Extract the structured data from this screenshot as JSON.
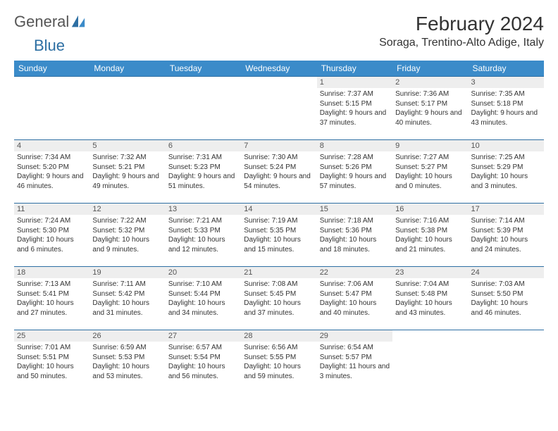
{
  "logo": {
    "line1": "General",
    "line2": "Blue",
    "brand_color": "#2d6fa3"
  },
  "title": "February 2024",
  "location": "Soraga, Trentino-Alto Adige, Italy",
  "colors": {
    "header_bg": "#3b8bc9",
    "header_text": "#ffffff",
    "rule": "#2d6fa3",
    "daynum_bg": "#eeeeee",
    "body_text": "#333333"
  },
  "day_headers": [
    "Sunday",
    "Monday",
    "Tuesday",
    "Wednesday",
    "Thursday",
    "Friday",
    "Saturday"
  ],
  "weeks": [
    [
      {
        "empty": true
      },
      {
        "empty": true
      },
      {
        "empty": true
      },
      {
        "empty": true
      },
      {
        "num": "1",
        "sunrise": "7:37 AM",
        "sunset": "5:15 PM",
        "daylight": "9 hours and 37 minutes."
      },
      {
        "num": "2",
        "sunrise": "7:36 AM",
        "sunset": "5:17 PM",
        "daylight": "9 hours and 40 minutes."
      },
      {
        "num": "3",
        "sunrise": "7:35 AM",
        "sunset": "5:18 PM",
        "daylight": "9 hours and 43 minutes."
      }
    ],
    [
      {
        "num": "4",
        "sunrise": "7:34 AM",
        "sunset": "5:20 PM",
        "daylight": "9 hours and 46 minutes."
      },
      {
        "num": "5",
        "sunrise": "7:32 AM",
        "sunset": "5:21 PM",
        "daylight": "9 hours and 49 minutes."
      },
      {
        "num": "6",
        "sunrise": "7:31 AM",
        "sunset": "5:23 PM",
        "daylight": "9 hours and 51 minutes."
      },
      {
        "num": "7",
        "sunrise": "7:30 AM",
        "sunset": "5:24 PM",
        "daylight": "9 hours and 54 minutes."
      },
      {
        "num": "8",
        "sunrise": "7:28 AM",
        "sunset": "5:26 PM",
        "daylight": "9 hours and 57 minutes."
      },
      {
        "num": "9",
        "sunrise": "7:27 AM",
        "sunset": "5:27 PM",
        "daylight": "10 hours and 0 minutes."
      },
      {
        "num": "10",
        "sunrise": "7:25 AM",
        "sunset": "5:29 PM",
        "daylight": "10 hours and 3 minutes."
      }
    ],
    [
      {
        "num": "11",
        "sunrise": "7:24 AM",
        "sunset": "5:30 PM",
        "daylight": "10 hours and 6 minutes."
      },
      {
        "num": "12",
        "sunrise": "7:22 AM",
        "sunset": "5:32 PM",
        "daylight": "10 hours and 9 minutes."
      },
      {
        "num": "13",
        "sunrise": "7:21 AM",
        "sunset": "5:33 PM",
        "daylight": "10 hours and 12 minutes."
      },
      {
        "num": "14",
        "sunrise": "7:19 AM",
        "sunset": "5:35 PM",
        "daylight": "10 hours and 15 minutes."
      },
      {
        "num": "15",
        "sunrise": "7:18 AM",
        "sunset": "5:36 PM",
        "daylight": "10 hours and 18 minutes."
      },
      {
        "num": "16",
        "sunrise": "7:16 AM",
        "sunset": "5:38 PM",
        "daylight": "10 hours and 21 minutes."
      },
      {
        "num": "17",
        "sunrise": "7:14 AM",
        "sunset": "5:39 PM",
        "daylight": "10 hours and 24 minutes."
      }
    ],
    [
      {
        "num": "18",
        "sunrise": "7:13 AM",
        "sunset": "5:41 PM",
        "daylight": "10 hours and 27 minutes."
      },
      {
        "num": "19",
        "sunrise": "7:11 AM",
        "sunset": "5:42 PM",
        "daylight": "10 hours and 31 minutes."
      },
      {
        "num": "20",
        "sunrise": "7:10 AM",
        "sunset": "5:44 PM",
        "daylight": "10 hours and 34 minutes."
      },
      {
        "num": "21",
        "sunrise": "7:08 AM",
        "sunset": "5:45 PM",
        "daylight": "10 hours and 37 minutes."
      },
      {
        "num": "22",
        "sunrise": "7:06 AM",
        "sunset": "5:47 PM",
        "daylight": "10 hours and 40 minutes."
      },
      {
        "num": "23",
        "sunrise": "7:04 AM",
        "sunset": "5:48 PM",
        "daylight": "10 hours and 43 minutes."
      },
      {
        "num": "24",
        "sunrise": "7:03 AM",
        "sunset": "5:50 PM",
        "daylight": "10 hours and 46 minutes."
      }
    ],
    [
      {
        "num": "25",
        "sunrise": "7:01 AM",
        "sunset": "5:51 PM",
        "daylight": "10 hours and 50 minutes."
      },
      {
        "num": "26",
        "sunrise": "6:59 AM",
        "sunset": "5:53 PM",
        "daylight": "10 hours and 53 minutes."
      },
      {
        "num": "27",
        "sunrise": "6:57 AM",
        "sunset": "5:54 PM",
        "daylight": "10 hours and 56 minutes."
      },
      {
        "num": "28",
        "sunrise": "6:56 AM",
        "sunset": "5:55 PM",
        "daylight": "10 hours and 59 minutes."
      },
      {
        "num": "29",
        "sunrise": "6:54 AM",
        "sunset": "5:57 PM",
        "daylight": "11 hours and 3 minutes."
      },
      {
        "empty": true
      },
      {
        "empty": true
      }
    ]
  ],
  "labels": {
    "sunrise": "Sunrise: ",
    "sunset": "Sunset: ",
    "daylight": "Daylight: "
  }
}
